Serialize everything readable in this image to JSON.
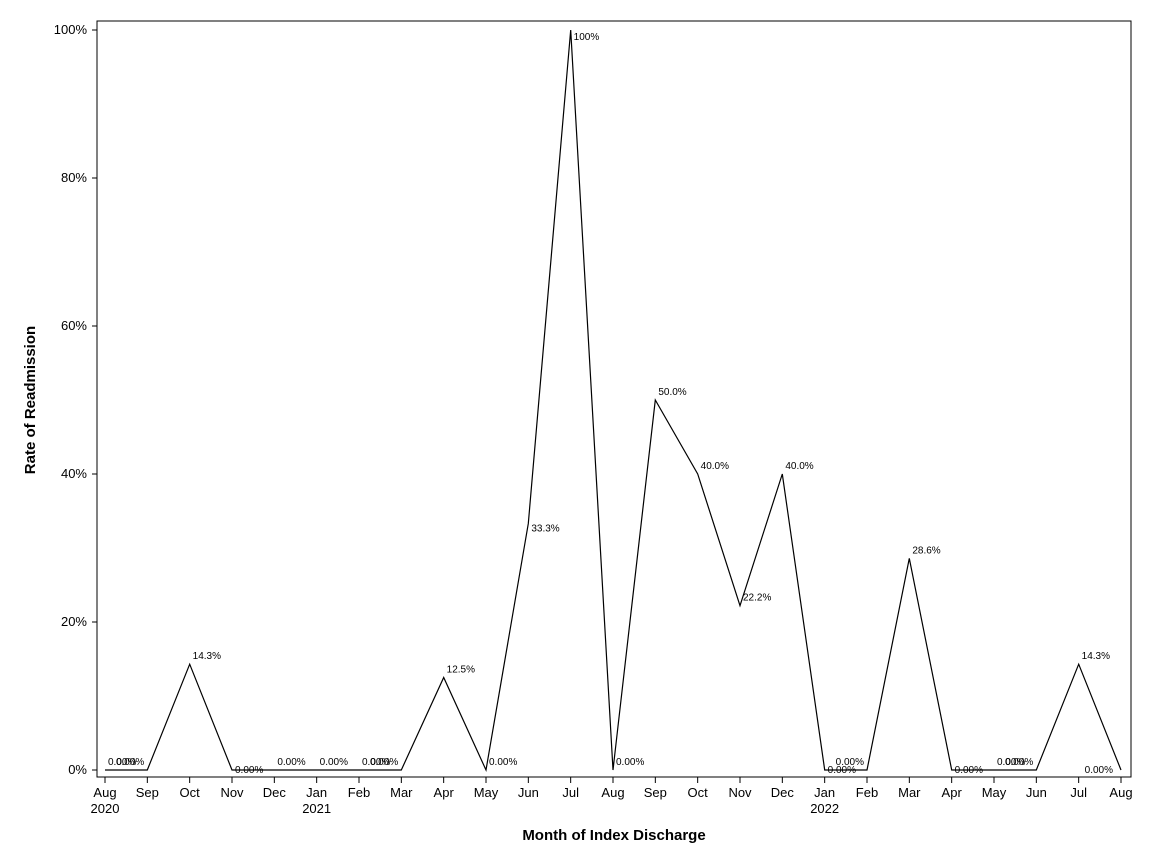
{
  "chart_data": {
    "type": "line",
    "xlabel": "Month of Index Discharge",
    "ylabel": "Rate of Readmission",
    "ylim": [
      0,
      100
    ],
    "y_ticks": [
      "0%",
      "20%",
      "40%",
      "60%",
      "80%",
      "100%"
    ],
    "y_tick_values": [
      0,
      20,
      40,
      60,
      80,
      100
    ],
    "grid": false,
    "x_tick_labels": [
      "Aug",
      "Sep",
      "Oct",
      "Nov",
      "Dec",
      "Jan",
      "Feb",
      "Mar",
      "Apr",
      "May",
      "Jun",
      "Jul",
      "Aug",
      "Sep",
      "Oct",
      "Nov",
      "Dec",
      "Jan",
      "Feb",
      "Mar",
      "Apr",
      "May",
      "Jun",
      "Jul",
      "Aug"
    ],
    "x_year_labels": [
      {
        "tick_index": 0,
        "label": "2020"
      },
      {
        "tick_index": 5,
        "label": "2021"
      },
      {
        "tick_index": 17,
        "label": "2022"
      }
    ],
    "x": [
      "2020-08",
      "2020-09",
      "2020-10",
      "2020-11",
      "2020-12",
      "2021-01",
      "2021-02",
      "2021-03",
      "2021-04",
      "2021-05",
      "2021-06",
      "2021-07",
      "2021-08",
      "2021-09",
      "2021-10",
      "2021-11",
      "2021-12",
      "2022-01",
      "2022-02",
      "2022-03",
      "2022-04",
      "2022-05",
      "2022-06",
      "2022-07",
      "2022-08"
    ],
    "values": [
      0,
      0,
      14.3,
      0,
      0,
      0,
      0,
      0,
      12.5,
      0,
      33.3,
      100,
      0,
      50.0,
      40.0,
      22.2,
      40.0,
      0,
      0,
      28.6,
      0,
      0,
      0,
      14.3,
      0
    ],
    "data_labels": [
      "0.00%",
      "0.00%",
      "14.3%",
      "0.00%",
      "0.00%",
      "0.00%",
      "0.00%",
      "0.00%",
      "12.5%",
      "0.00%",
      "33.3%",
      "100%",
      "0.00%",
      "50.0%",
      "40.0%",
      "22.2%",
      "40.0%",
      "0.00%",
      "0.00%",
      "28.6%",
      "0.00%",
      "0.00%",
      "0.00%",
      "14.3%",
      "0.00%"
    ],
    "line_color": "#000000"
  }
}
